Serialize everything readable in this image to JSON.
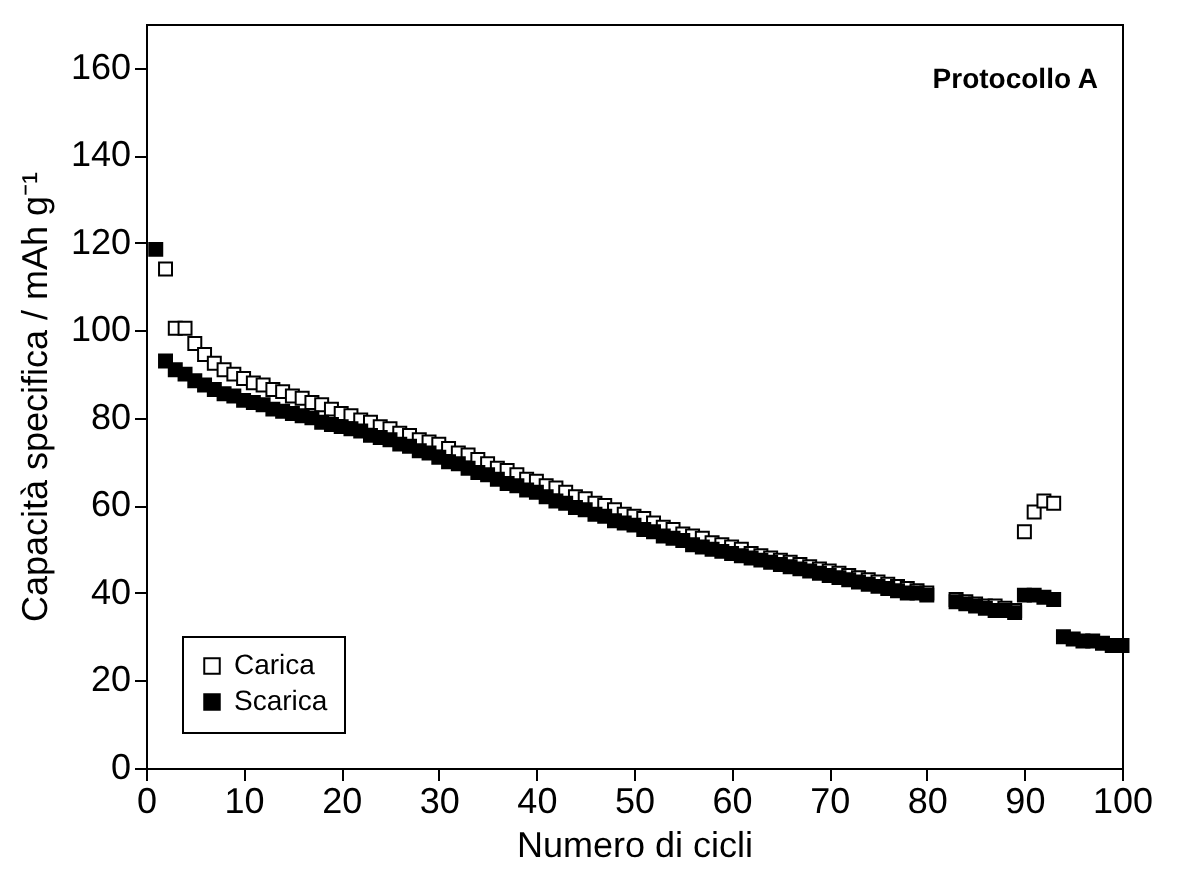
{
  "chart_data": {
    "type": "scatter",
    "xlabel": "Numero di cicli",
    "ylabel": "Capacità specifica / mAh g⁻¹",
    "annotations": [
      "Protocollo A"
    ],
    "x": [
      1,
      2,
      3,
      4,
      5,
      6,
      7,
      8,
      9,
      10,
      11,
      12,
      13,
      14,
      15,
      16,
      17,
      18,
      19,
      20,
      21,
      22,
      23,
      24,
      25,
      26,
      27,
      28,
      29,
      30,
      31,
      32,
      33,
      34,
      35,
      36,
      37,
      38,
      39,
      40,
      41,
      42,
      43,
      44,
      45,
      46,
      47,
      48,
      49,
      50,
      51,
      52,
      53,
      54,
      55,
      56,
      57,
      58,
      59,
      60,
      61,
      62,
      63,
      64,
      65,
      66,
      67,
      68,
      69,
      70,
      71,
      72,
      73,
      74,
      75,
      76,
      77,
      78,
      79,
      80,
      83,
      84,
      85,
      86,
      87,
      88,
      89,
      90,
      91,
      92,
      93,
      94,
      95,
      96,
      97,
      98,
      99,
      100
    ],
    "series": [
      {
        "name": "Carica",
        "color": "#000000",
        "values": [
          null,
          114,
          100.5,
          100.5,
          97,
          94.5,
          92.5,
          91,
          90,
          89,
          88,
          87.5,
          86.5,
          86,
          85,
          84.5,
          83.5,
          83,
          82,
          81,
          80.5,
          79.5,
          79,
          78,
          77.5,
          76.5,
          76,
          75,
          74.5,
          74,
          73,
          72,
          71.5,
          70.5,
          69.5,
          68.5,
          68,
          67,
          66,
          65.5,
          64.5,
          64,
          63,
          62,
          61.5,
          60.5,
          60,
          59,
          58,
          57.5,
          57,
          56,
          55,
          54.5,
          53.5,
          53,
          52.5,
          51.5,
          51,
          50.5,
          50,
          49,
          48.5,
          48,
          47.5,
          47,
          46.5,
          46,
          45.5,
          45,
          44.5,
          44,
          43.5,
          43,
          42.5,
          42,
          41.5,
          41,
          40.5,
          40,
          38.5,
          38,
          37.5,
          37,
          37,
          36.5,
          36,
          54,
          58.5,
          61,
          60.5,
          null,
          null,
          null,
          null,
          null,
          null,
          null
        ]
      },
      {
        "name": "Scarica",
        "color": "#000000",
        "values": [
          118.5,
          93,
          91,
          90,
          88.5,
          87.5,
          86.5,
          85.5,
          85,
          84,
          83.5,
          83,
          82,
          81.5,
          81,
          80.5,
          80,
          79,
          78.5,
          78,
          77.5,
          77,
          76,
          75.5,
          75,
          74,
          73.5,
          72.5,
          72,
          71,
          70,
          69.5,
          68.5,
          67.5,
          67,
          66,
          65,
          64.5,
          63.5,
          63,
          62,
          61,
          60.5,
          59.5,
          59,
          58,
          57.5,
          56.5,
          56,
          55.5,
          54.5,
          54,
          53,
          52.5,
          52,
          51,
          50.5,
          50,
          49.5,
          49,
          48.5,
          48,
          47.5,
          47,
          46.5,
          46,
          45.5,
          45,
          44.5,
          44,
          43.5,
          43,
          42.5,
          42,
          41.5,
          41,
          40.5,
          40,
          40,
          39.5,
          38,
          37.5,
          37,
          36.5,
          36,
          36,
          35.5,
          39.5,
          39.5,
          39,
          38.5,
          30,
          29.5,
          29,
          29,
          28.5,
          28,
          28
        ]
      }
    ],
    "xlim": [
      0,
      100
    ],
    "xticks": [
      0,
      10,
      20,
      30,
      40,
      50,
      60,
      70,
      80,
      90,
      100
    ],
    "ylim": [
      0,
      170
    ],
    "yticks": [
      0,
      20,
      40,
      60,
      80,
      100,
      120,
      140,
      160
    ],
    "marker": "square",
    "legend": "bottom left",
    "grid": false
  }
}
